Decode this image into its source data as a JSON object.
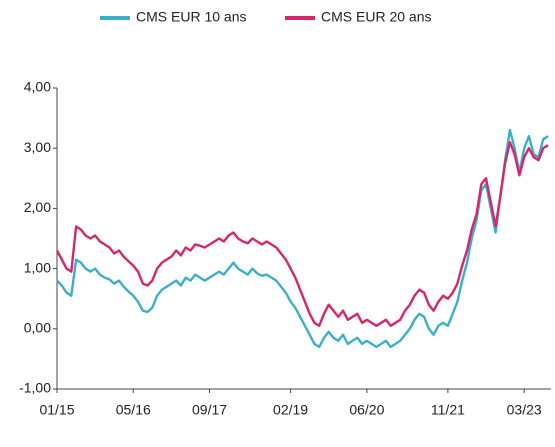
{
  "chart_data": {
    "type": "line",
    "categories": [
      "01/15",
      null,
      null,
      null,
      null,
      null,
      null,
      null,
      null,
      null,
      null,
      null,
      null,
      null,
      null,
      null,
      "05/16",
      null,
      null,
      null,
      null,
      null,
      null,
      null,
      null,
      null,
      null,
      null,
      null,
      null,
      null,
      null,
      "09/17",
      null,
      null,
      null,
      null,
      null,
      null,
      null,
      null,
      null,
      null,
      null,
      null,
      null,
      null,
      null,
      null,
      "02/19",
      null,
      null,
      null,
      null,
      null,
      null,
      null,
      null,
      null,
      null,
      null,
      null,
      null,
      null,
      null,
      "06/20",
      null,
      null,
      null,
      null,
      null,
      null,
      null,
      null,
      null,
      null,
      null,
      null,
      null,
      null,
      null,
      null,
      "11/21",
      null,
      null,
      null,
      null,
      null,
      null,
      null,
      null,
      null,
      null,
      null,
      null,
      null,
      null,
      null,
      "03/23",
      null,
      null,
      null,
      null,
      null
    ],
    "series": [
      {
        "name": "CMS EUR 10 ans",
        "color": "#3bb0c9",
        "values": [
          0.8,
          0.72,
          0.6,
          0.55,
          1.15,
          1.1,
          1.0,
          0.95,
          1.0,
          0.9,
          0.85,
          0.82,
          0.75,
          0.8,
          0.7,
          0.62,
          0.55,
          0.45,
          0.3,
          0.28,
          0.35,
          0.55,
          0.65,
          0.7,
          0.75,
          0.8,
          0.72,
          0.85,
          0.8,
          0.9,
          0.85,
          0.8,
          0.85,
          0.9,
          0.95,
          0.9,
          1.0,
          1.1,
          1.0,
          0.95,
          0.9,
          1.0,
          0.92,
          0.88,
          0.9,
          0.85,
          0.8,
          0.7,
          0.6,
          0.45,
          0.35,
          0.2,
          0.05,
          -0.1,
          -0.25,
          -0.3,
          -0.15,
          -0.05,
          -0.15,
          -0.2,
          -0.1,
          -0.25,
          -0.2,
          -0.15,
          -0.25,
          -0.2,
          -0.25,
          -0.3,
          -0.25,
          -0.2,
          -0.3,
          -0.25,
          -0.2,
          -0.1,
          0.0,
          0.15,
          0.25,
          0.2,
          0.0,
          -0.1,
          0.05,
          0.1,
          0.05,
          0.25,
          0.45,
          0.8,
          1.1,
          1.5,
          1.8,
          2.3,
          2.4,
          2.0,
          1.6,
          2.2,
          2.8,
          3.3,
          3.0,
          2.6,
          3.0,
          3.2,
          2.9,
          2.85,
          3.15,
          3.2
        ]
      },
      {
        "name": "CMS EUR 20 ans",
        "color": "#d6266e",
        "values": [
          1.3,
          1.15,
          1.0,
          0.95,
          1.7,
          1.65,
          1.55,
          1.5,
          1.55,
          1.45,
          1.4,
          1.35,
          1.25,
          1.3,
          1.2,
          1.12,
          1.05,
          0.95,
          0.75,
          0.72,
          0.8,
          1.0,
          1.1,
          1.15,
          1.2,
          1.3,
          1.22,
          1.35,
          1.3,
          1.4,
          1.38,
          1.35,
          1.4,
          1.45,
          1.5,
          1.45,
          1.55,
          1.6,
          1.5,
          1.45,
          1.42,
          1.5,
          1.45,
          1.4,
          1.45,
          1.4,
          1.35,
          1.25,
          1.15,
          1.0,
          0.85,
          0.65,
          0.45,
          0.25,
          0.1,
          0.05,
          0.25,
          0.4,
          0.3,
          0.2,
          0.3,
          0.15,
          0.2,
          0.25,
          0.1,
          0.15,
          0.1,
          0.05,
          0.1,
          0.15,
          0.05,
          0.1,
          0.15,
          0.3,
          0.4,
          0.55,
          0.65,
          0.6,
          0.4,
          0.3,
          0.45,
          0.55,
          0.5,
          0.6,
          0.75,
          1.05,
          1.3,
          1.65,
          1.9,
          2.4,
          2.5,
          2.1,
          1.7,
          2.2,
          2.75,
          3.1,
          2.9,
          2.55,
          2.85,
          3.0,
          2.85,
          2.8,
          3.0,
          3.05
        ]
      }
    ],
    "ylim": [
      -1,
      4
    ],
    "yticks": [
      {
        "value": -1,
        "label": "-1,00"
      },
      {
        "value": 0,
        "label": "0,00"
      },
      {
        "value": 1,
        "label": "1,00"
      },
      {
        "value": 2,
        "label": "2,00"
      },
      {
        "value": 3,
        "label": "3,00"
      },
      {
        "value": 4,
        "label": "4,00"
      }
    ],
    "grid": false,
    "legend": "top"
  }
}
